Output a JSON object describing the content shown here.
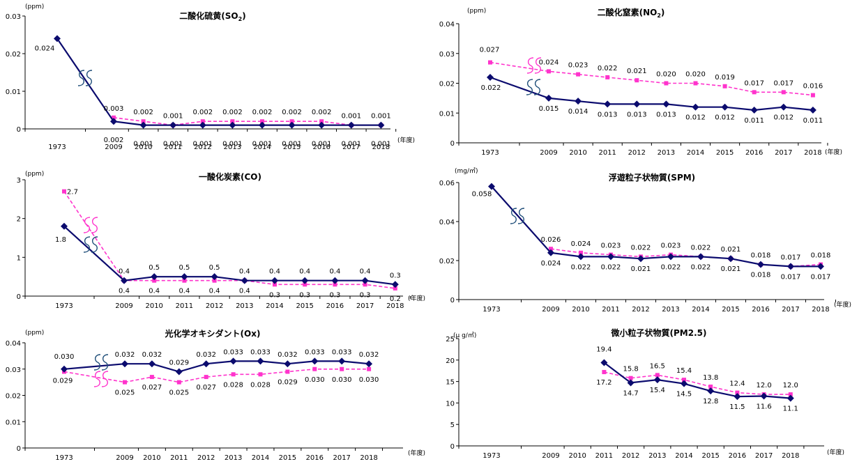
{
  "colors": {
    "series_a": "#0b0b6e",
    "series_b": "#ff33cc",
    "axis": "#000000",
    "break_mark": "#1f4e79"
  },
  "chart_data": [
    {
      "id": "so2",
      "type": "line",
      "title": "二酸化硫黄(SO2)",
      "title_main": "二酸化硫黄(SO",
      "title_sub": "2",
      "title_tail": ")",
      "unit": "(ppm)",
      "xlabel": "(年度)",
      "ylim": [
        0,
        0.03
      ],
      "yticks": [
        "0",
        "0.01",
        "0.02",
        "0.03"
      ],
      "categories": [
        "1973",
        "2009",
        "2010",
        "2011",
        "2012",
        "2013",
        "2014",
        "2015",
        "2016",
        "2017",
        "2018"
      ],
      "series": [
        {
          "values": [
            0.024,
            0.002,
            0.001,
            0.001,
            0.001,
            0.001,
            0.001,
            0.001,
            0.001,
            0.001,
            0.001
          ],
          "labels": [
            "0.024",
            "0.002",
            "0.001",
            "0.001",
            "0.001",
            "0.001",
            "0.001",
            "0.001",
            "0.001",
            "0.001",
            "0.001"
          ]
        },
        {
          "values": [
            null,
            0.003,
            0.002,
            0.001,
            0.002,
            0.002,
            0.002,
            0.002,
            0.002,
            0.001,
            0.001
          ],
          "labels": [
            "",
            "0.003",
            "0.002",
            "0.001",
            "0.002",
            "0.002",
            "0.002",
            "0.002",
            "0.002",
            "0.001",
            "0.001"
          ]
        }
      ]
    },
    {
      "id": "no2",
      "type": "line",
      "title": "二酸化窒素(NO2)",
      "title_main": "二酸化窒素(NO",
      "title_sub": "2",
      "title_tail": ")",
      "unit": "(ppm)",
      "xlabel": "(年度)",
      "ylim": [
        0,
        0.04
      ],
      "yticks": [
        "0",
        "0.01",
        "0.02",
        "0.03",
        "0.04"
      ],
      "categories": [
        "1973",
        "2009",
        "2010",
        "2011",
        "2012",
        "2013",
        "2014",
        "2015",
        "2016",
        "2017",
        "2018"
      ],
      "series": [
        {
          "values": [
            0.022,
            0.015,
            0.014,
            0.013,
            0.013,
            0.013,
            0.012,
            0.012,
            0.011,
            0.012,
            0.011
          ],
          "labels": [
            "0.022",
            "0.015",
            "0.014",
            "0.013",
            "0.013",
            "0.013",
            "0.012",
            "0.012",
            "0.011",
            "0.012",
            "0.011"
          ]
        },
        {
          "values": [
            0.027,
            0.024,
            0.023,
            0.022,
            0.021,
            0.02,
            0.02,
            0.019,
            0.017,
            0.017,
            0.016
          ],
          "labels": [
            "0.027",
            "0.024",
            "0.023",
            "0.022",
            "0.021",
            "0.020",
            "0.020",
            "0.019",
            "0.017",
            "0.017",
            "0.016"
          ]
        }
      ]
    },
    {
      "id": "co",
      "type": "line",
      "title": "一酸化炭素(CO)",
      "unit": "(ppm)",
      "xlabel": "(年度)",
      "ylim": [
        0,
        3
      ],
      "yticks": [
        "0",
        "1",
        "2",
        "3"
      ],
      "categories": [
        "1973",
        "2009",
        "2010",
        "2011",
        "2012",
        "2013",
        "2014",
        "2015",
        "2016",
        "2017",
        "2018"
      ],
      "series": [
        {
          "values": [
            1.8,
            0.4,
            0.5,
            0.5,
            0.5,
            0.4,
            0.4,
            0.4,
            0.4,
            0.4,
            0.3
          ],
          "labels": [
            "1.8",
            "0.4",
            "0.5",
            "0.5",
            "0.5",
            "0.4",
            "0.4",
            "0.4",
            "0.4",
            "0.4",
            "0.3"
          ]
        },
        {
          "values": [
            2.7,
            0.4,
            0.4,
            0.4,
            0.4,
            0.4,
            0.3,
            0.3,
            0.3,
            0.3,
            0.2
          ],
          "labels": [
            "2.7",
            "0.4",
            "0.4",
            "0.4",
            "0.4",
            "0.4",
            "0.3",
            "0.3",
            "0.3",
            "0.3",
            "0.2"
          ]
        }
      ]
    },
    {
      "id": "spm",
      "type": "line",
      "title": "浮遊粒子状物質(SPM)",
      "unit": "(mg/㎥)",
      "xlabel": "(年度)",
      "ylim": [
        0,
        0.06
      ],
      "yticks": [
        "0",
        "0.02",
        "0.04",
        "0.06"
      ],
      "categories": [
        "1973",
        "2009",
        "2010",
        "2011",
        "2012",
        "2013",
        "2014",
        "2015",
        "2016",
        "2017",
        "2018"
      ],
      "series": [
        {
          "values": [
            0.058,
            0.024,
            0.022,
            0.022,
            0.021,
            0.022,
            0.022,
            0.021,
            0.018,
            0.017,
            0.017
          ],
          "labels": [
            "0.058",
            "0.024",
            "0.022",
            "0.022",
            "0.021",
            "0.022",
            "0.022",
            "0.021",
            "0.018",
            "0.017",
            "0.017"
          ]
        },
        {
          "values": [
            null,
            0.026,
            0.024,
            0.023,
            0.022,
            0.023,
            0.022,
            0.021,
            0.018,
            0.017,
            0.018
          ],
          "labels": [
            "",
            "0.026",
            "0.024",
            "0.023",
            "0.022",
            "0.023",
            "0.022",
            "0.021",
            "0.018",
            "0.017",
            "0.018"
          ]
        }
      ]
    },
    {
      "id": "ox",
      "type": "line",
      "title": "光化学オキシダント(Ox)",
      "unit": "(ppm)",
      "xlabel": "(年度)",
      "ylim": [
        0,
        0.04
      ],
      "yticks": [
        "0",
        "0.01",
        "0.02",
        "0.03",
        "0.04"
      ],
      "categories": [
        "1973",
        "2009",
        "2010",
        "2011",
        "2012",
        "2013",
        "2014",
        "2015",
        "2016",
        "2017",
        "2018"
      ],
      "series": [
        {
          "values": [
            0.03,
            0.032,
            0.032,
            0.029,
            0.032,
            0.033,
            0.033,
            0.032,
            0.033,
            0.033,
            0.032
          ],
          "labels": [
            "0.030",
            "0.032",
            "0.032",
            "0.029",
            "0.032",
            "0.033",
            "0.033",
            "0.032",
            "0.033",
            "0.033",
            "0.032"
          ]
        },
        {
          "values": [
            0.029,
            0.025,
            0.027,
            0.025,
            0.027,
            0.028,
            0.028,
            0.029,
            0.03,
            0.03,
            0.03
          ],
          "labels": [
            "0.029",
            "0.025",
            "0.027",
            "0.025",
            "0.027",
            "0.028",
            "0.028",
            "0.029",
            "0.030",
            "0.030",
            "0.030"
          ]
        }
      ]
    },
    {
      "id": "pm25",
      "type": "line",
      "title": "微小粒子状物質(PM2.5)",
      "unit": "(μ g/㎥)",
      "xlabel": "(年度)",
      "ylim": [
        0,
        25
      ],
      "yticks": [
        "0",
        "5",
        "10",
        "15",
        "20",
        "25"
      ],
      "categories": [
        "1973",
        "2009",
        "2010",
        "2011",
        "2012",
        "2013",
        "2014",
        "2015",
        "2016",
        "2017",
        "2018"
      ],
      "series": [
        {
          "values": [
            null,
            null,
            null,
            19.4,
            14.7,
            15.4,
            14.5,
            12.8,
            11.5,
            11.6,
            11.1
          ],
          "labels": [
            "",
            "",
            "",
            "19.4",
            "14.7",
            "15.4",
            "14.5",
            "12.8",
            "11.5",
            "11.6",
            "11.1"
          ]
        },
        {
          "values": [
            null,
            null,
            null,
            17.2,
            15.8,
            16.5,
            15.4,
            13.8,
            12.4,
            12.0,
            12.0
          ],
          "labels": [
            "",
            "",
            "",
            "17.2",
            "15.8",
            "16.5",
            "15.4",
            "13.8",
            "12.4",
            "12.0",
            "12.0"
          ]
        }
      ]
    }
  ]
}
